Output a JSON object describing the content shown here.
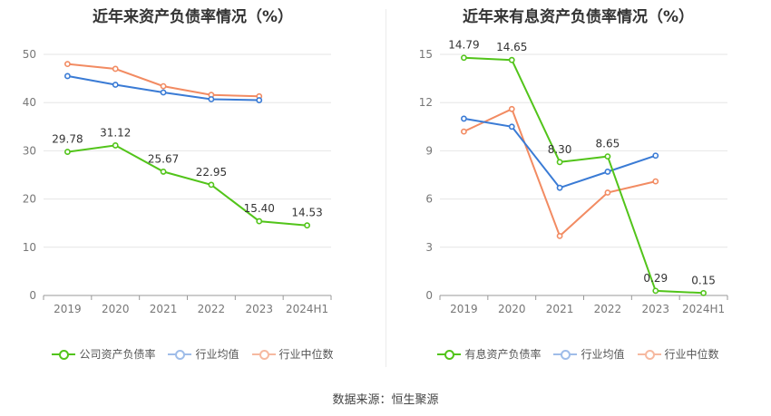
{
  "source_label": "数据来源：恒生聚源",
  "chart_data": [
    {
      "type": "line",
      "title": "近年来资产负债率情况（%）",
      "categories": [
        "2019",
        "2020",
        "2021",
        "2022",
        "2023",
        "2024H1"
      ],
      "ylim": [
        0,
        50
      ],
      "yticks": [
        0,
        10,
        20,
        30,
        40,
        50
      ],
      "series": [
        {
          "name": "公司资产负债率",
          "color": "#52c41a",
          "values": [
            29.78,
            31.12,
            25.67,
            22.95,
            15.4,
            14.53
          ],
          "labels": [
            "29.78",
            "31.12",
            "25.67",
            "22.95",
            "15.40",
            "14.53"
          ]
        },
        {
          "name": "行业均值",
          "color": "#3a7bd5",
          "values": [
            45.5,
            43.7,
            42.1,
            40.7,
            40.5,
            null
          ]
        },
        {
          "name": "行业中位数",
          "color": "#f28b62",
          "values": [
            48.0,
            47.0,
            43.4,
            41.6,
            41.3,
            null
          ]
        }
      ]
    },
    {
      "type": "line",
      "title": "近年来有息资产负债率情况（%）",
      "categories": [
        "2019",
        "2020",
        "2021",
        "2022",
        "2023",
        "2024H1"
      ],
      "ylim": [
        0,
        15
      ],
      "yticks": [
        0,
        3,
        6,
        9,
        12,
        15
      ],
      "series": [
        {
          "name": "有息资产负债率",
          "color": "#52c41a",
          "values": [
            14.79,
            14.65,
            8.3,
            8.65,
            0.29,
            0.15
          ],
          "labels": [
            "14.79",
            "14.65",
            "8.30",
            "8.65",
            "0.29",
            "0.15"
          ]
        },
        {
          "name": "行业均值",
          "color": "#3a7bd5",
          "values": [
            11.0,
            10.5,
            6.7,
            7.7,
            8.7,
            null
          ]
        },
        {
          "name": "行业中位数",
          "color": "#f28b62",
          "values": [
            10.2,
            11.6,
            3.7,
            6.4,
            7.1,
            null
          ]
        }
      ]
    }
  ]
}
